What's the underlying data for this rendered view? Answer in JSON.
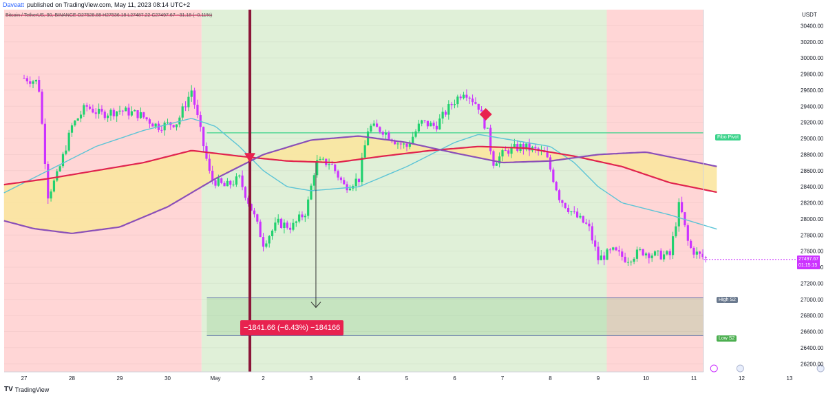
{
  "header": {
    "publisher": "Daveatt",
    "published_text": "published on TradingView.com, May 11, 2023 08:14 UTC+2"
  },
  "symbol_line": "Bitcoin / TetherUS, 90, BINANCE  O27528.88  H27536.18  L27487.22  C27497.67  −31.18 (−0.11%)",
  "footer": {
    "brand": "TradingView"
  },
  "currency": "USDT",
  "last_price": {
    "value": "27497.67",
    "countdown": "01:15:15",
    "color": "#cc33ff"
  },
  "levels": {
    "fibo_pivot": {
      "label": "Fibo Pivot",
      "price": 29070,
      "color": "#3ad38a"
    },
    "high_s2": {
      "label": "High S2",
      "price": 27020
    },
    "low_s2": {
      "label": "Low S2",
      "price": 26550
    }
  },
  "measure": {
    "text": "−1841.66 (−6.43%) −184166"
  },
  "colors": {
    "bull": "#22d16f",
    "bear": "#cc33ff",
    "zone_red": "#ffd6d6",
    "zone_green": "#e0f0d8",
    "cloud_fill": "#fbe6a0",
    "ema_red": "#e0234e",
    "ema_purple": "#8a4fb8",
    "ema_cyan": "#5cc4d6",
    "vline": "#8b1538"
  },
  "chart_data": {
    "type": "candlestick",
    "y_axis": {
      "min": 26100,
      "max": 30600,
      "ticks": [
        26200,
        26400,
        26600,
        26800,
        27000,
        27200,
        27400,
        27600,
        27800,
        28000,
        28200,
        28400,
        28600,
        28800,
        29000,
        29200,
        29400,
        29600,
        29800,
        30000,
        30200,
        30400
      ]
    },
    "x_axis": {
      "labels": [
        "27",
        "28",
        "29",
        "30",
        "May",
        "2",
        "3",
        "4",
        "5",
        "6",
        "7",
        "8",
        "9",
        "10",
        "11",
        "12",
        "13"
      ],
      "label_index": [
        0,
        1,
        2,
        3,
        4,
        5,
        6,
        7,
        8,
        9,
        10,
        11,
        12,
        13,
        14,
        15,
        16
      ]
    },
    "vertical_marker_day": 4.72,
    "zones": [
      {
        "from": -0.5,
        "to": 3.71,
        "type": "red"
      },
      {
        "from": 3.71,
        "to": 12.18,
        "type": "green"
      },
      {
        "from": 12.18,
        "to": 14.48,
        "type": "red"
      }
    ],
    "candles_keypoints": [
      [
        0,
        29750
      ],
      [
        0.3,
        29700
      ],
      [
        0.5,
        28300
      ],
      [
        0.7,
        28550
      ],
      [
        1.0,
        29150
      ],
      [
        1.3,
        29400
      ],
      [
        1.6,
        29300
      ],
      [
        2.0,
        29350
      ],
      [
        2.4,
        29300
      ],
      [
        2.8,
        29150
      ],
      [
        3.2,
        29200
      ],
      [
        3.5,
        29600
      ],
      [
        3.7,
        29050
      ],
      [
        3.9,
        28500
      ],
      [
        4.2,
        28400
      ],
      [
        4.5,
        28500
      ],
      [
        4.8,
        28050
      ],
      [
        5.0,
        27700
      ],
      [
        5.3,
        27950
      ],
      [
        5.6,
        27900
      ],
      [
        5.9,
        28100
      ],
      [
        6.1,
        28700
      ],
      [
        6.4,
        28700
      ],
      [
        6.7,
        28400
      ],
      [
        7.0,
        28500
      ],
      [
        7.2,
        29150
      ],
      [
        7.5,
        29100
      ],
      [
        7.8,
        28950
      ],
      [
        8.0,
        28900
      ],
      [
        8.3,
        29200
      ],
      [
        8.6,
        29150
      ],
      [
        8.9,
        29400
      ],
      [
        9.2,
        29600
      ],
      [
        9.5,
        29400
      ],
      [
        9.7,
        29050
      ],
      [
        9.8,
        28700
      ],
      [
        10.1,
        28850
      ],
      [
        10.4,
        28900
      ],
      [
        10.7,
        28850
      ],
      [
        10.9,
        28800
      ],
      [
        11.2,
        28250
      ],
      [
        11.5,
        28050
      ],
      [
        11.8,
        27900
      ],
      [
        12.0,
        27500
      ],
      [
        12.3,
        27600
      ],
      [
        12.6,
        27500
      ],
      [
        12.9,
        27600
      ],
      [
        13.2,
        27550
      ],
      [
        13.5,
        27550
      ],
      [
        13.7,
        28200
      ],
      [
        13.9,
        27650
      ],
      [
        14.1,
        27550
      ],
      [
        14.3,
        27497
      ]
    ],
    "ema_red_keypoints": [
      [
        -0.5,
        28420
      ],
      [
        0.5,
        28500
      ],
      [
        1.5,
        28600
      ],
      [
        2.5,
        28700
      ],
      [
        3.5,
        28850
      ],
      [
        4.5,
        28780
      ],
      [
        5.5,
        28720
      ],
      [
        6.5,
        28700
      ],
      [
        7.5,
        28780
      ],
      [
        8.5,
        28850
      ],
      [
        9.5,
        28900
      ],
      [
        10.5,
        28880
      ],
      [
        11.5,
        28780
      ],
      [
        12.5,
        28650
      ],
      [
        13.5,
        28450
      ],
      [
        14.5,
        28330
      ]
    ],
    "ema_purple_keypoints": [
      [
        -0.5,
        27990
      ],
      [
        0.2,
        27880
      ],
      [
        1.0,
        27820
      ],
      [
        2.0,
        27900
      ],
      [
        3.0,
        28150
      ],
      [
        4.0,
        28500
      ],
      [
        5.0,
        28800
      ],
      [
        6.0,
        28980
      ],
      [
        7.0,
        29030
      ],
      [
        8.0,
        28950
      ],
      [
        9.0,
        28820
      ],
      [
        10.0,
        28700
      ],
      [
        11.0,
        28720
      ],
      [
        12.0,
        28800
      ],
      [
        13.0,
        28830
      ],
      [
        14.5,
        28650
      ]
    ],
    "ema_cyan_keypoints": [
      [
        -0.5,
        28300
      ],
      [
        0.5,
        28600
      ],
      [
        1.5,
        28900
      ],
      [
        2.5,
        29100
      ],
      [
        3.5,
        29250
      ],
      [
        4.0,
        29150
      ],
      [
        4.5,
        28900
      ],
      [
        5.0,
        28600
      ],
      [
        5.5,
        28400
      ],
      [
        6.0,
        28350
      ],
      [
        7.0,
        28400
      ],
      [
        8.0,
        28650
      ],
      [
        9.0,
        28950
      ],
      [
        9.5,
        29050
      ],
      [
        10.0,
        29000
      ],
      [
        11.0,
        28900
      ],
      [
        11.5,
        28700
      ],
      [
        12.0,
        28400
      ],
      [
        12.5,
        28200
      ],
      [
        13.5,
        28050
      ],
      [
        14.5,
        27870
      ]
    ]
  }
}
